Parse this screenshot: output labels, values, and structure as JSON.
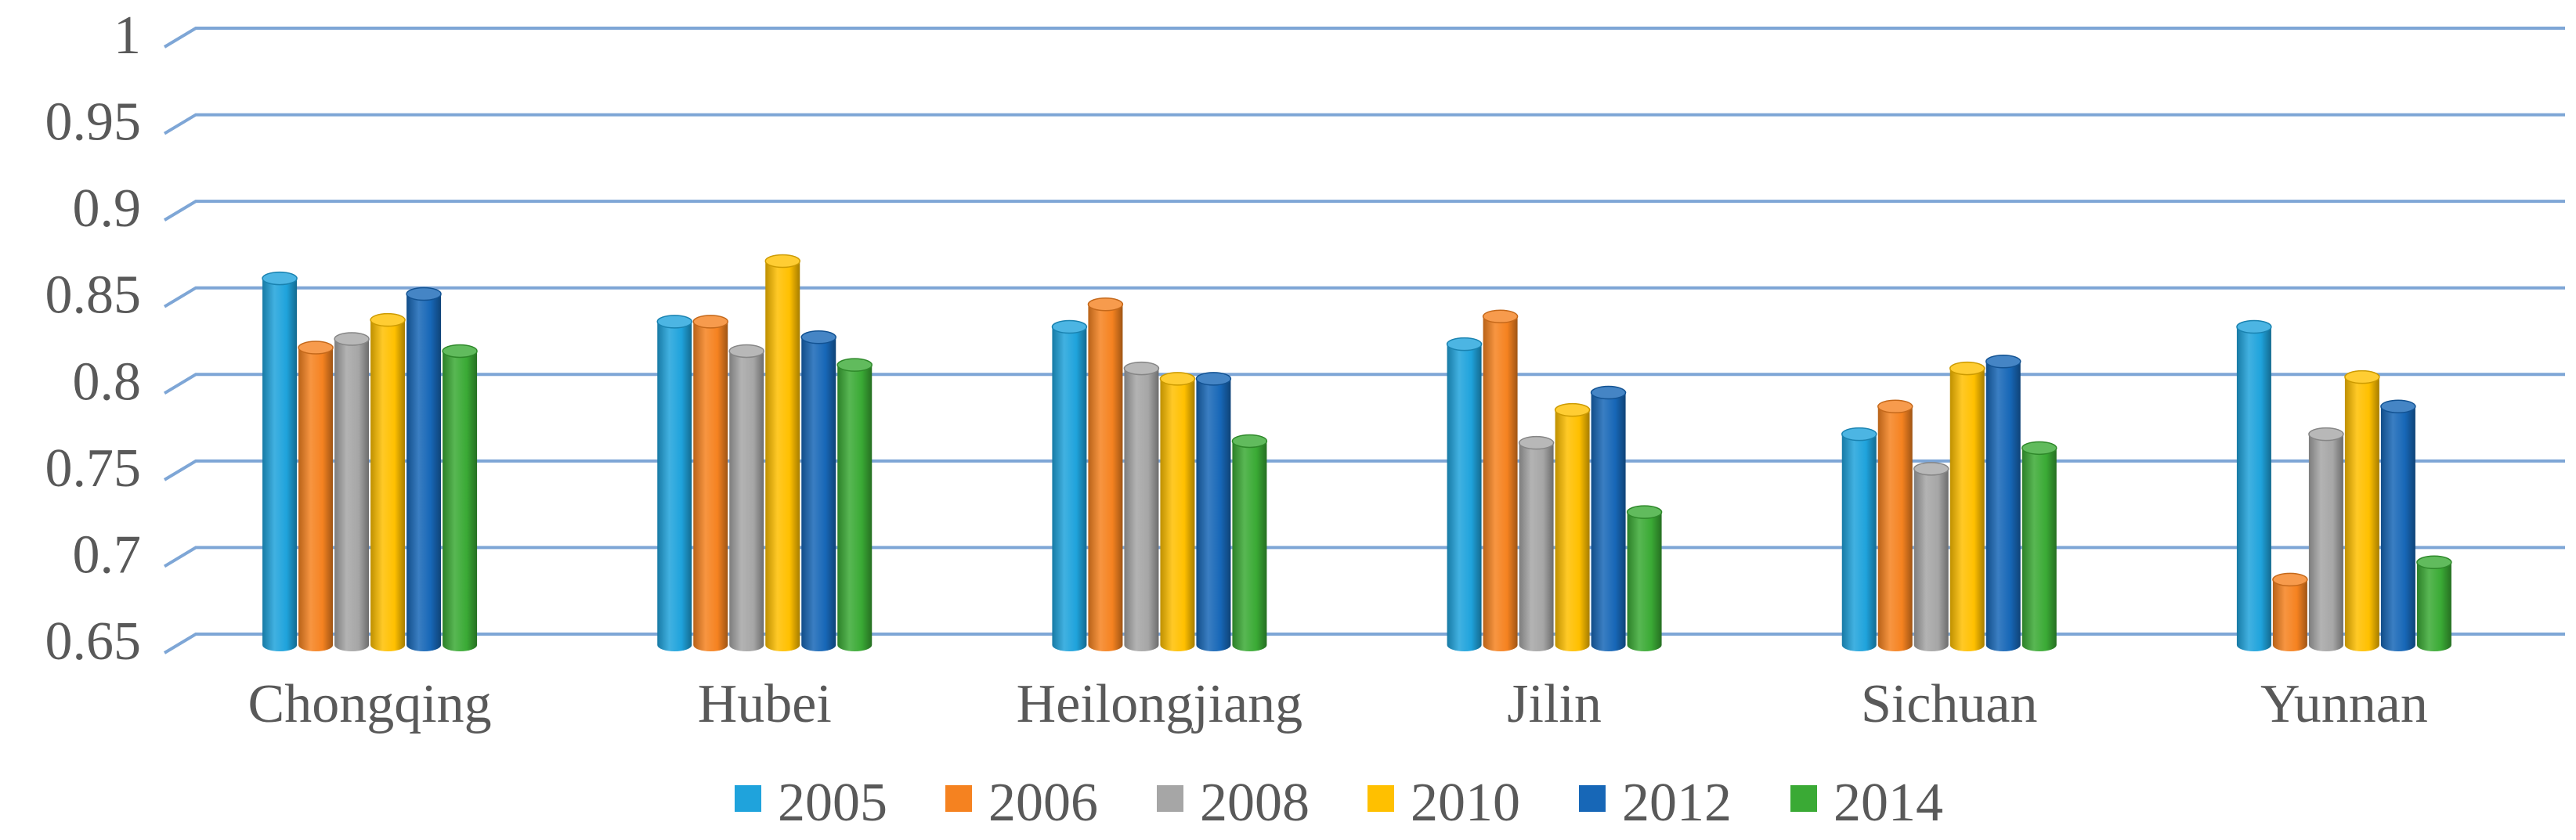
{
  "chart_data": {
    "type": "bar",
    "style": "3d-cylinder",
    "categories": [
      "Chongqing",
      "Hubei",
      "Heilongjiang",
      "Jilin",
      "Sichuan",
      "Yunnan"
    ],
    "series": [
      {
        "name": "2005",
        "color": "#1fa3dc",
        "values": [
          0.86,
          0.835,
          0.832,
          0.822,
          0.77,
          0.832
        ]
      },
      {
        "name": "2006",
        "color": "#f58220",
        "values": [
          0.82,
          0.835,
          0.845,
          0.838,
          0.786,
          0.686
        ]
      },
      {
        "name": "2008",
        "color": "#a6a6a6",
        "values": [
          0.825,
          0.818,
          0.808,
          0.765,
          0.75,
          0.77
        ]
      },
      {
        "name": "2010",
        "color": "#ffc000",
        "values": [
          0.836,
          0.87,
          0.802,
          0.784,
          0.808,
          0.803
        ]
      },
      {
        "name": "2012",
        "color": "#1767b7",
        "values": [
          0.851,
          0.826,
          0.802,
          0.794,
          0.812,
          0.786
        ]
      },
      {
        "name": "2014",
        "color": "#3aaa35",
        "values": [
          0.818,
          0.81,
          0.766,
          0.725,
          0.762,
          0.696
        ]
      }
    ],
    "yticks": [
      "0.65",
      "0.7",
      "0.75",
      "0.8",
      "0.85",
      "0.9",
      "0.95",
      "1"
    ],
    "ylim": [
      0.65,
      1.0
    ],
    "grid": true,
    "gridline_color": "#7ea6d6",
    "legend_position": "bottom",
    "title": "",
    "xlabel": "",
    "ylabel": ""
  }
}
